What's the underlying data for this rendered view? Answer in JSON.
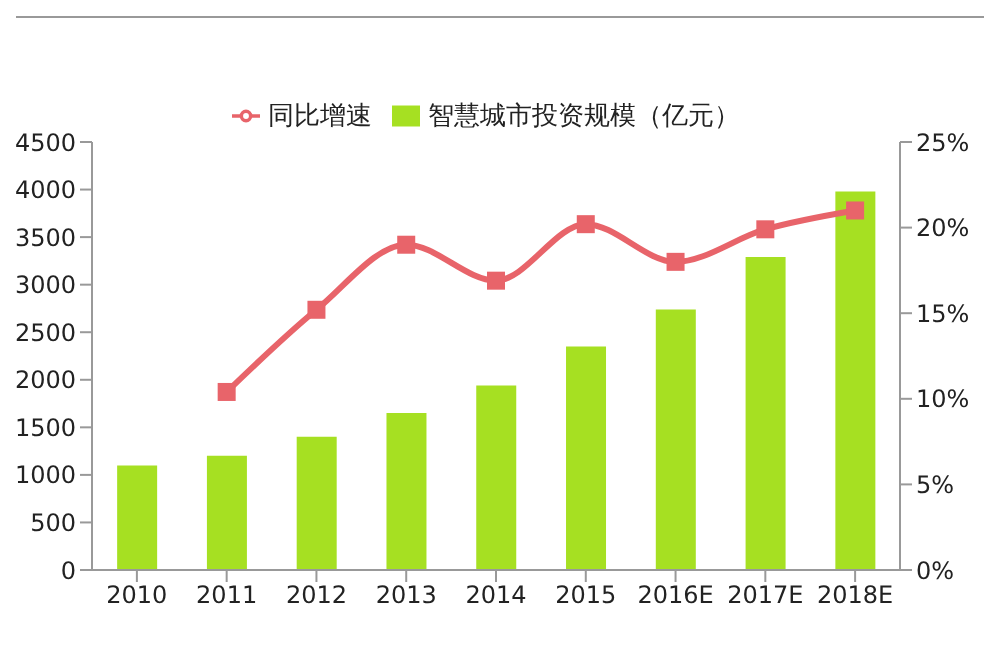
{
  "chart_data": {
    "type": "bar",
    "categories": [
      "2010",
      "2011",
      "2012",
      "2013",
      "2014",
      "2015",
      "2016E",
      "2017E",
      "2018E"
    ],
    "series": [
      {
        "name": "智慧城市投资规模（亿元）",
        "color": "#a6e022",
        "values": [
          1100,
          1200,
          1400,
          1650,
          1940,
          2350,
          2740,
          3290,
          3980
        ]
      },
      {
        "name": "同比增速",
        "type": "line",
        "axis": "y2",
        "color": "#e8646a",
        "values": [
          null,
          10.4,
          15.2,
          19.0,
          16.9,
          20.2,
          18.0,
          19.9,
          21.0
        ]
      }
    ],
    "ylim": [
      0,
      4500
    ],
    "yticks": [
      0,
      500,
      1000,
      1500,
      2000,
      2500,
      3000,
      3500,
      4000,
      4500
    ],
    "y2lim": [
      0,
      25
    ],
    "y2ticks": [
      {
        "value": 0,
        "label": "0%"
      },
      {
        "value": 5,
        "label": "5%"
      },
      {
        "value": 10,
        "label": "10%"
      },
      {
        "value": 15,
        "label": "15%"
      },
      {
        "value": 20,
        "label": "20%"
      },
      {
        "value": 25,
        "label": "25%"
      }
    ],
    "grid": false,
    "legend": "top",
    "marker": "square",
    "line_style": "solid"
  }
}
